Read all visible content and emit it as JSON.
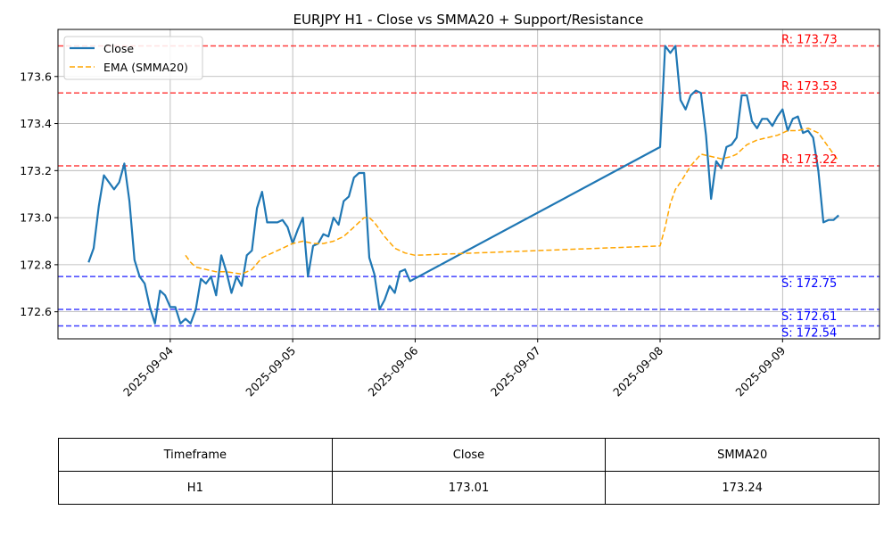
{
  "chart_data": {
    "type": "line",
    "title": "EURJPY H1 - Close vs SMMA20 + Support/Resistance",
    "xlabel": "",
    "ylabel": "",
    "ylim": [
      172.485,
      173.8
    ],
    "xlim": [
      "2025-09-03 02:00",
      "2025-09-09 19:00"
    ],
    "x_ticks": [
      "2025-09-04",
      "2025-09-05",
      "2025-09-06",
      "2025-09-07",
      "2025-09-08",
      "2025-09-09"
    ],
    "y_ticks": [
      "172.6",
      "172.8",
      "173.0",
      "173.2",
      "173.4",
      "173.6"
    ],
    "grid": true,
    "legend_position": "top-left",
    "series": [
      {
        "name": "Close",
        "color": "#1f77b4",
        "style": "solid",
        "points": [
          [
            "2025-09-03 08:00",
            172.81
          ],
          [
            "2025-09-03 09:00",
            172.87
          ],
          [
            "2025-09-03 10:00",
            173.05
          ],
          [
            "2025-09-03 11:00",
            173.18
          ],
          [
            "2025-09-03 12:00",
            173.15
          ],
          [
            "2025-09-03 13:00",
            173.12
          ],
          [
            "2025-09-03 14:00",
            173.15
          ],
          [
            "2025-09-03 15:00",
            173.23
          ],
          [
            "2025-09-03 16:00",
            173.07
          ],
          [
            "2025-09-03 17:00",
            172.82
          ],
          [
            "2025-09-03 18:00",
            172.75
          ],
          [
            "2025-09-03 19:00",
            172.72
          ],
          [
            "2025-09-03 20:00",
            172.62
          ],
          [
            "2025-09-03 21:00",
            172.55
          ],
          [
            "2025-09-03 22:00",
            172.69
          ],
          [
            "2025-09-03 23:00",
            172.67
          ],
          [
            "2025-09-04 00:00",
            172.62
          ],
          [
            "2025-09-04 01:00",
            172.62
          ],
          [
            "2025-09-04 02:00",
            172.55
          ],
          [
            "2025-09-04 03:00",
            172.57
          ],
          [
            "2025-09-04 04:00",
            172.55
          ],
          [
            "2025-09-04 05:00",
            172.61
          ],
          [
            "2025-09-04 06:00",
            172.74
          ],
          [
            "2025-09-04 07:00",
            172.72
          ],
          [
            "2025-09-04 08:00",
            172.75
          ],
          [
            "2025-09-04 09:00",
            172.67
          ],
          [
            "2025-09-04 10:00",
            172.84
          ],
          [
            "2025-09-04 11:00",
            172.77
          ],
          [
            "2025-09-04 12:00",
            172.68
          ],
          [
            "2025-09-04 13:00",
            172.75
          ],
          [
            "2025-09-04 14:00",
            172.71
          ],
          [
            "2025-09-04 15:00",
            172.84
          ],
          [
            "2025-09-04 16:00",
            172.86
          ],
          [
            "2025-09-04 17:00",
            173.04
          ],
          [
            "2025-09-04 18:00",
            173.11
          ],
          [
            "2025-09-04 19:00",
            172.98
          ],
          [
            "2025-09-04 20:00",
            172.98
          ],
          [
            "2025-09-04 21:00",
            172.98
          ],
          [
            "2025-09-04 22:00",
            172.99
          ],
          [
            "2025-09-04 23:00",
            172.96
          ],
          [
            "2025-09-05 00:00",
            172.89
          ],
          [
            "2025-09-05 01:00",
            172.95
          ],
          [
            "2025-09-05 02:00",
            173.0
          ],
          [
            "2025-09-05 03:00",
            172.75
          ],
          [
            "2025-09-05 04:00",
            172.88
          ],
          [
            "2025-09-05 05:00",
            172.89
          ],
          [
            "2025-09-05 06:00",
            172.93
          ],
          [
            "2025-09-05 07:00",
            172.92
          ],
          [
            "2025-09-05 08:00",
            173.0
          ],
          [
            "2025-09-05 09:00",
            172.97
          ],
          [
            "2025-09-05 10:00",
            173.07
          ],
          [
            "2025-09-05 11:00",
            173.09
          ],
          [
            "2025-09-05 12:00",
            173.17
          ],
          [
            "2025-09-05 13:00",
            173.19
          ],
          [
            "2025-09-05 14:00",
            173.19
          ],
          [
            "2025-09-05 15:00",
            172.83
          ],
          [
            "2025-09-05 16:00",
            172.76
          ],
          [
            "2025-09-05 17:00",
            172.61
          ],
          [
            "2025-09-05 18:00",
            172.65
          ],
          [
            "2025-09-05 19:00",
            172.71
          ],
          [
            "2025-09-05 20:00",
            172.68
          ],
          [
            "2025-09-05 21:00",
            172.77
          ],
          [
            "2025-09-05 22:00",
            172.78
          ],
          [
            "2025-09-05 23:00",
            172.73
          ],
          [
            "2025-09-08 00:00",
            173.3
          ],
          [
            "2025-09-08 01:00",
            173.73
          ],
          [
            "2025-09-08 02:00",
            173.7
          ],
          [
            "2025-09-08 03:00",
            173.73
          ],
          [
            "2025-09-08 04:00",
            173.5
          ],
          [
            "2025-09-08 05:00",
            173.46
          ],
          [
            "2025-09-08 06:00",
            173.52
          ],
          [
            "2025-09-08 07:00",
            173.54
          ],
          [
            "2025-09-08 08:00",
            173.53
          ],
          [
            "2025-09-08 09:00",
            173.35
          ],
          [
            "2025-09-08 10:00",
            173.08
          ],
          [
            "2025-09-08 11:00",
            173.24
          ],
          [
            "2025-09-08 12:00",
            173.21
          ],
          [
            "2025-09-08 13:00",
            173.3
          ],
          [
            "2025-09-08 14:00",
            173.31
          ],
          [
            "2025-09-08 15:00",
            173.34
          ],
          [
            "2025-09-08 16:00",
            173.52
          ],
          [
            "2025-09-08 17:00",
            173.52
          ],
          [
            "2025-09-08 18:00",
            173.41
          ],
          [
            "2025-09-08 19:00",
            173.38
          ],
          [
            "2025-09-08 20:00",
            173.42
          ],
          [
            "2025-09-08 21:00",
            173.42
          ],
          [
            "2025-09-08 22:00",
            173.39
          ],
          [
            "2025-09-08 23:00",
            173.43
          ],
          [
            "2025-09-09 00:00",
            173.46
          ],
          [
            "2025-09-09 01:00",
            173.37
          ],
          [
            "2025-09-09 02:00",
            173.42
          ],
          [
            "2025-09-09 03:00",
            173.43
          ],
          [
            "2025-09-09 04:00",
            173.36
          ],
          [
            "2025-09-09 05:00",
            173.37
          ],
          [
            "2025-09-09 06:00",
            173.34
          ],
          [
            "2025-09-09 07:00",
            173.2
          ],
          [
            "2025-09-09 08:00",
            172.98
          ],
          [
            "2025-09-09 09:00",
            172.99
          ],
          [
            "2025-09-09 10:00",
            172.99
          ],
          [
            "2025-09-09 11:00",
            173.01
          ]
        ]
      },
      {
        "name": "EMA (SMMA20)",
        "color": "#ffa500",
        "style": "dashed",
        "points": [
          [
            "2025-09-04 03:00",
            172.84
          ],
          [
            "2025-09-04 04:00",
            172.81
          ],
          [
            "2025-09-04 05:00",
            172.79
          ],
          [
            "2025-09-04 07:00",
            172.78
          ],
          [
            "2025-09-04 09:00",
            172.77
          ],
          [
            "2025-09-04 11:00",
            172.77
          ],
          [
            "2025-09-04 14:00",
            172.76
          ],
          [
            "2025-09-04 15:00",
            172.77
          ],
          [
            "2025-09-04 16:00",
            172.78
          ],
          [
            "2025-09-04 18:00",
            172.83
          ],
          [
            "2025-09-04 20:00",
            172.85
          ],
          [
            "2025-09-04 22:00",
            172.87
          ],
          [
            "2025-09-05 00:00",
            172.89
          ],
          [
            "2025-09-05 02:00",
            172.9
          ],
          [
            "2025-09-05 04:00",
            172.89
          ],
          [
            "2025-09-05 06:00",
            172.89
          ],
          [
            "2025-09-05 08:00",
            172.9
          ],
          [
            "2025-09-05 10:00",
            172.92
          ],
          [
            "2025-09-05 12:00",
            172.96
          ],
          [
            "2025-09-05 14:00",
            173.0
          ],
          [
            "2025-09-05 15:00",
            173.0
          ],
          [
            "2025-09-05 16:00",
            172.98
          ],
          [
            "2025-09-05 18:00",
            172.92
          ],
          [
            "2025-09-05 20:00",
            172.87
          ],
          [
            "2025-09-05 22:00",
            172.85
          ],
          [
            "2025-09-06 00:00",
            172.84
          ],
          [
            "2025-09-08 00:00",
            172.88
          ],
          [
            "2025-09-08 01:00",
            172.96
          ],
          [
            "2025-09-08 02:00",
            173.06
          ],
          [
            "2025-09-08 03:00",
            173.12
          ],
          [
            "2025-09-08 04:00",
            173.15
          ],
          [
            "2025-09-08 06:00",
            173.22
          ],
          [
            "2025-09-08 08:00",
            173.27
          ],
          [
            "2025-09-08 10:00",
            173.26
          ],
          [
            "2025-09-08 12:00",
            173.25
          ],
          [
            "2025-09-08 14:00",
            173.26
          ],
          [
            "2025-09-08 15:00",
            173.27
          ],
          [
            "2025-09-08 17:00",
            173.31
          ],
          [
            "2025-09-08 19:00",
            173.33
          ],
          [
            "2025-09-08 21:00",
            173.34
          ],
          [
            "2025-09-08 23:00",
            173.35
          ],
          [
            "2025-09-09 01:00",
            173.37
          ],
          [
            "2025-09-09 03:00",
            173.37
          ],
          [
            "2025-09-09 05:00",
            173.38
          ],
          [
            "2025-09-09 07:00",
            173.36
          ],
          [
            "2025-09-09 09:00",
            173.3
          ],
          [
            "2025-09-09 11:00",
            173.24
          ]
        ]
      }
    ],
    "levels": [
      {
        "kind": "resistance",
        "value": 173.73,
        "label": "R: 173.73",
        "color": "#ff0000"
      },
      {
        "kind": "resistance",
        "value": 173.53,
        "label": "R: 173.53",
        "color": "#ff0000"
      },
      {
        "kind": "resistance",
        "value": 173.22,
        "label": "R: 173.22",
        "color": "#ff0000"
      },
      {
        "kind": "support",
        "value": 172.75,
        "label": "S: 172.75",
        "color": "#0000ff"
      },
      {
        "kind": "support",
        "value": 172.61,
        "label": "S: 172.61",
        "color": "#0000ff"
      },
      {
        "kind": "support",
        "value": 172.54,
        "label": "S: 172.54",
        "color": "#0000ff"
      }
    ]
  },
  "table": {
    "headers": [
      "Timeframe",
      "Close",
      "SMMA20"
    ],
    "rows": [
      [
        "H1",
        "173.01",
        "173.24"
      ]
    ]
  }
}
